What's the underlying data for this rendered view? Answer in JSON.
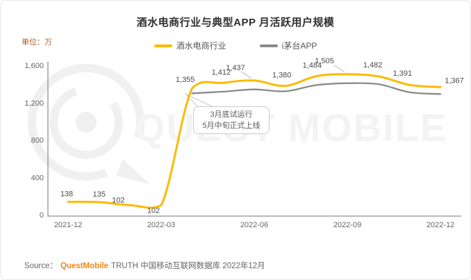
{
  "header": {
    "title": "酒水电商行业与典型APP 月活跃用户规模",
    "unit_label": "单位：万"
  },
  "legend": [
    {
      "label": "酒水电商行业",
      "color": "#FFB900"
    },
    {
      "label": "i茅台APP",
      "color": "#8A8A8A"
    }
  ],
  "annotation": {
    "line1": "3月底试运行",
    "line2": "5月中旬正式上线"
  },
  "watermark": {
    "text": "QUEST MOBILE"
  },
  "source": {
    "prefix": "Source：",
    "brand": "QuestMobile",
    "suffix": "TRUTH 中国移动互联网数据库 2022年12月"
  },
  "chart_data": {
    "type": "line",
    "title": "酒水电商行业与典型APP 月活跃用户规模",
    "ylabel": "单位：万",
    "x": [
      "2021-12",
      "2022-01",
      "2022-02",
      "2022-03",
      "2022-04",
      "2022-05",
      "2022-06",
      "2022-07",
      "2022-08",
      "2022-09",
      "2022-10",
      "2022-11",
      "2022-12"
    ],
    "x_tick_labels": [
      "2021-12",
      "2022-03",
      "2022-06",
      "2022-09",
      "2022-12"
    ],
    "ylim": [
      0,
      1600
    ],
    "yticks": [
      0,
      400,
      800,
      1200,
      1600
    ],
    "ytick_labels": [
      "0",
      "400",
      "800",
      "1,200",
      "1,600"
    ],
    "grid": false,
    "legend_position": "top",
    "series": [
      {
        "name": "酒水电商行业",
        "color": "#FFB900",
        "values": [
          138,
          135,
          102,
          102,
          1355,
          1412,
          1437,
          1380,
          1484,
          1505,
          1482,
          1391,
          1367
        ],
        "labels": [
          "138",
          "135",
          "102",
          "102",
          "1,355",
          "1,412",
          "1,437",
          "1,380",
          "1,484",
          "1,505",
          "1,482",
          "1,391",
          "1,367"
        ],
        "labels_shown": true
      },
      {
        "name": "i茅台APP",
        "color": "#8A8A8A",
        "values": [
          null,
          null,
          null,
          null,
          1300,
          1318,
          1342,
          1322,
          1388,
          1408,
          1398,
          1312,
          1292
        ],
        "labels_shown": false
      }
    ]
  }
}
